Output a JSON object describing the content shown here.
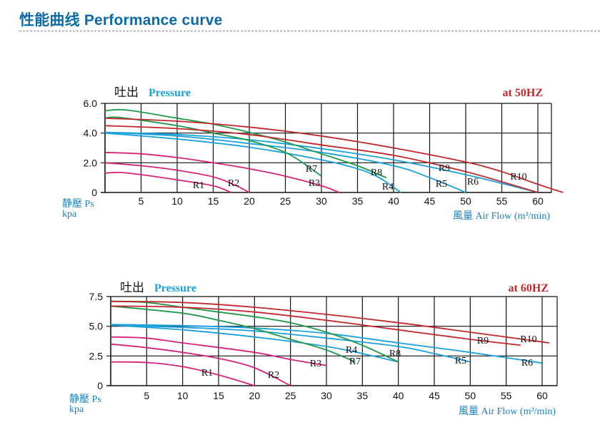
{
  "header": {
    "title": "性能曲线 Performance curve"
  },
  "colors": {
    "R1": "#d4237a",
    "R2": "#d4237a",
    "R3": "#d4237a",
    "R4": "#1aa0dc",
    "R5": "#1aa0dc",
    "R6": "#1aa0dc",
    "R7": "#1f9a4a",
    "R8": "#1f9a4a",
    "R9": "#c0282d",
    "R10": "#c0282d",
    "title_blue": "#1aa0dc",
    "freq_red": "#c0282d",
    "axis_label": "#1a7fc0"
  },
  "chart_data": [
    {
      "type": "line",
      "title_cn": "吐出",
      "title": "Pressure",
      "frequency": "at  50HZ",
      "ylabel_cn": "静壓 Ps",
      "ylabel_unit": "kpa",
      "xlabel_cn": "風量",
      "xlabel": "Air Flow (m³/min)",
      "xlim": [
        0,
        62.5
      ],
      "ylim": [
        0,
        6
      ],
      "xticks": [
        5,
        10,
        15,
        20,
        25,
        30,
        35,
        40,
        45,
        50,
        55,
        60
      ],
      "yticks": [
        {
          "v": 0,
          "label": "0"
        },
        {
          "v": 2,
          "label": "2.0"
        },
        {
          "v": 4,
          "label": "4.0"
        },
        {
          "v": 6,
          "label": "6.0"
        }
      ],
      "grid": true,
      "series": [
        {
          "name": "R1",
          "points": [
            [
              0,
              1.3
            ],
            [
              2,
              1.35
            ],
            [
              5,
              1.2
            ],
            [
              10,
              0.85
            ],
            [
              15,
              0.45
            ],
            [
              17.5,
              0
            ]
          ]
        },
        {
          "name": "R2",
          "points": [
            [
              0,
              2.0
            ],
            [
              5,
              1.8
            ],
            [
              10,
              1.5
            ],
            [
              15,
              1.05
            ],
            [
              18,
              0.5
            ],
            [
              20,
              0
            ]
          ]
        },
        {
          "name": "R3",
          "points": [
            [
              0,
              2.7
            ],
            [
              5,
              2.6
            ],
            [
              10,
              2.35
            ],
            [
              15,
              2.0
            ],
            [
              20,
              1.6
            ],
            [
              25,
              1.1
            ],
            [
              30,
              0.45
            ],
            [
              32.5,
              0
            ]
          ]
        },
        {
          "name": "R4",
          "points": [
            [
              0,
              4.0
            ],
            [
              10,
              3.6
            ],
            [
              20,
              3.05
            ],
            [
              30,
              2.2
            ],
            [
              35,
              1.6
            ],
            [
              38,
              1.0
            ],
            [
              41,
              0
            ]
          ]
        },
        {
          "name": "R5",
          "points": [
            [
              0,
              4.05
            ],
            [
              10,
              3.8
            ],
            [
              20,
              3.3
            ],
            [
              30,
              2.7
            ],
            [
              40,
              1.8
            ],
            [
              45,
              1.0
            ],
            [
              50,
              0
            ]
          ]
        },
        {
          "name": "R6",
          "points": [
            [
              0,
              4.05
            ],
            [
              10,
              3.9
            ],
            [
              20,
              3.55
            ],
            [
              30,
              2.95
            ],
            [
              40,
              2.2
            ],
            [
              50,
              1.2
            ],
            [
              60,
              0
            ]
          ]
        },
        {
          "name": "R7",
          "points": [
            [
              0,
              5.0
            ],
            [
              2,
              5.05
            ],
            [
              10,
              4.5
            ],
            [
              15,
              4.0
            ],
            [
              20,
              3.5
            ],
            [
              25,
              2.7
            ],
            [
              28,
              1.8
            ],
            [
              30,
              1.1
            ]
          ]
        },
        {
          "name": "R8",
          "points": [
            [
              0,
              5.5
            ],
            [
              3,
              5.55
            ],
            [
              10,
              5.0
            ],
            [
              15,
              4.6
            ],
            [
              20,
              4.05
            ],
            [
              25,
              3.4
            ],
            [
              30,
              2.6
            ],
            [
              35,
              1.8
            ],
            [
              39,
              1.0
            ]
          ]
        },
        {
          "name": "R9",
          "points": [
            [
              0,
              4.5
            ],
            [
              10,
              4.3
            ],
            [
              20,
              3.9
            ],
            [
              30,
              3.2
            ],
            [
              40,
              2.5
            ],
            [
              50,
              1.4
            ],
            [
              60,
              0
            ]
          ]
        },
        {
          "name": "R10",
          "points": [
            [
              0,
              5.0
            ],
            [
              10,
              4.8
            ],
            [
              20,
              4.4
            ],
            [
              30,
              3.8
            ],
            [
              40,
              3.0
            ],
            [
              50,
              2.05
            ],
            [
              55,
              1.4
            ],
            [
              60,
              0.55
            ],
            [
              63.5,
              0
            ]
          ]
        }
      ]
    },
    {
      "type": "line",
      "title_cn": "吐出",
      "title": "Pressure",
      "frequency": "at  60HZ",
      "ylabel_cn": "静壓 Ps",
      "ylabel_unit": "kpa",
      "xlabel_cn": "風量",
      "xlabel": "Air Flow (m³/min)",
      "xlim": [
        0,
        62
      ],
      "ylim": [
        0,
        7.5
      ],
      "xticks": [
        5,
        10,
        15,
        20,
        25,
        30,
        35,
        40,
        45,
        50,
        55,
        60
      ],
      "yticks": [
        {
          "v": 0,
          "label": "0"
        },
        {
          "v": 2.5,
          "label": "2.5"
        },
        {
          "v": 5,
          "label": "5.0"
        },
        {
          "v": 7.5,
          "label": "7.5"
        }
      ],
      "grid": true,
      "series": [
        {
          "name": "R1",
          "points": [
            [
              0,
              2.0
            ],
            [
              5,
              1.95
            ],
            [
              10,
              1.6
            ],
            [
              15,
              0.9
            ],
            [
              20,
              0
            ]
          ]
        },
        {
          "name": "R2",
          "points": [
            [
              0,
              3.5
            ],
            [
              5,
              3.2
            ],
            [
              10,
              2.8
            ],
            [
              15,
              2.3
            ],
            [
              20,
              1.5
            ],
            [
              25,
              0
            ]
          ]
        },
        {
          "name": "R3",
          "points": [
            [
              0,
              4.1
            ],
            [
              5,
              4.0
            ],
            [
              10,
              3.6
            ],
            [
              20,
              2.8
            ],
            [
              25,
              2.2
            ],
            [
              30,
              1.7
            ]
          ]
        },
        {
          "name": "R4",
          "points": [
            [
              0,
              5.1
            ],
            [
              10,
              4.7
            ],
            [
              20,
              4.1
            ],
            [
              30,
              3.3
            ],
            [
              35,
              2.7
            ],
            [
              40,
              2.0
            ]
          ]
        },
        {
          "name": "R5",
          "points": [
            [
              0,
              5.1
            ],
            [
              10,
              4.9
            ],
            [
              20,
              4.6
            ],
            [
              30,
              4.0
            ],
            [
              40,
              3.3
            ],
            [
              45,
              2.7
            ],
            [
              50,
              2.0
            ]
          ]
        },
        {
          "name": "R6",
          "points": [
            [
              0,
              5.15
            ],
            [
              10,
              5.05
            ],
            [
              20,
              4.85
            ],
            [
              30,
              4.4
            ],
            [
              40,
              3.6
            ],
            [
              50,
              2.8
            ],
            [
              60,
              1.9
            ]
          ]
        },
        {
          "name": "R7",
          "points": [
            [
              0,
              6.7
            ],
            [
              10,
              6.1
            ],
            [
              15,
              5.5
            ],
            [
              20,
              4.8
            ],
            [
              25,
              3.9
            ],
            [
              30,
              3.0
            ],
            [
              34,
              2.0
            ]
          ]
        },
        {
          "name": "R8",
          "points": [
            [
              0,
              7.1
            ],
            [
              5,
              7.0
            ],
            [
              10,
              6.6
            ],
            [
              15,
              6.2
            ],
            [
              20,
              5.8
            ],
            [
              25,
              5.3
            ],
            [
              30,
              4.5
            ],
            [
              35,
              3.4
            ],
            [
              40,
              2.0
            ]
          ]
        },
        {
          "name": "R9",
          "points": [
            [
              0,
              6.7
            ],
            [
              10,
              6.6
            ],
            [
              20,
              6.2
            ],
            [
              30,
              5.5
            ],
            [
              40,
              4.7
            ],
            [
              50,
              3.9
            ],
            [
              57,
              3.4
            ]
          ]
        },
        {
          "name": "R10",
          "points": [
            [
              0,
              7.1
            ],
            [
              10,
              7.0
            ],
            [
              20,
              6.6
            ],
            [
              30,
              6.0
            ],
            [
              40,
              5.3
            ],
            [
              50,
              4.5
            ],
            [
              61,
              3.6
            ]
          ]
        }
      ]
    }
  ]
}
